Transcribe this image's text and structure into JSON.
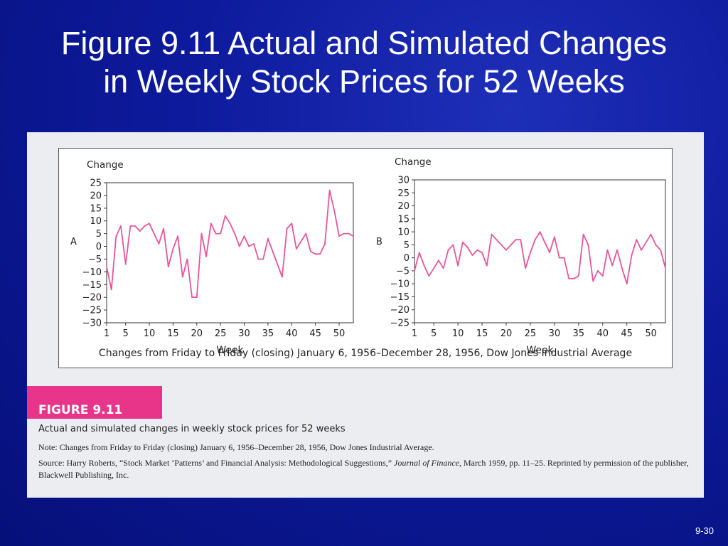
{
  "slide": {
    "title_line1": "Figure 9.11 Actual and Simulated Changes",
    "title_line2": "in Weekly Stock Prices for 52 Weeks",
    "page_number": "9-30"
  },
  "figure": {
    "label": "FIGURE 9.11",
    "caption": "Actual and simulated changes in weekly stock prices for 52 weeks",
    "note": "Note: Changes from Friday to Friday (closing) January 6, 1956–December 28, 1956, Dow Jones Industrial Average.",
    "source_prefix": "Source: Harry Roberts, “Stock Market ‘Patterns’ and Financial Analysis: Methodological Suggestions,” ",
    "source_journal": "Journal of Finance,",
    "source_suffix": " March 1959, pp. 11–25. Reprinted by permission of the publisher, Blackwell Publishing, Inc.",
    "chart_footer": "Changes from Friday to Friday (closing) January 6, 1956–December 28, 1956, Dow Jones Industrial Average"
  },
  "colors": {
    "line": "#e8559a",
    "accent": "#e8358a"
  },
  "chart_data": [
    {
      "type": "line",
      "panel_label": "A",
      "ylabel": "Change",
      "xlabel": "Week",
      "xlim": [
        1,
        53
      ],
      "ylim": [
        -30,
        25
      ],
      "xticks": [
        1,
        5,
        10,
        15,
        20,
        25,
        30,
        35,
        40,
        45,
        50
      ],
      "yticks": [
        25,
        20,
        15,
        10,
        5,
        0,
        -5,
        -10,
        -15,
        -20,
        -25,
        -30
      ],
      "ytick_labels": [
        "25",
        "20",
        "15",
        "10",
        "5",
        "0",
        "−5",
        "−10",
        "−15",
        "−20",
        "−25",
        "−30"
      ],
      "series": [
        {
          "x": [
            1,
            2,
            3,
            4,
            5,
            6,
            7,
            8,
            9,
            10,
            11,
            12,
            13,
            14,
            15,
            16,
            17,
            18,
            19,
            20,
            21,
            22,
            23,
            24,
            25,
            26,
            27,
            28,
            29,
            30,
            31,
            32,
            33,
            34,
            35,
            36,
            37,
            38,
            39,
            40,
            41,
            42,
            43,
            44,
            45,
            46,
            47,
            48,
            49,
            50,
            51,
            52,
            53
          ],
          "values": [
            -8,
            -17,
            4,
            8,
            -7,
            8,
            8,
            6,
            8,
            9,
            5,
            1,
            7,
            -8,
            -1,
            4,
            -12,
            -5,
            -20,
            -20,
            5,
            -4,
            9,
            5,
            5,
            12,
            9,
            5,
            0,
            4,
            0,
            1,
            -5,
            -5,
            3,
            -2,
            -7,
            -12,
            7,
            9,
            -1,
            2,
            5,
            -2,
            -3,
            -3,
            1,
            22,
            14,
            4,
            5,
            5,
            4
          ]
        }
      ]
    },
    {
      "type": "line",
      "panel_label": "B",
      "ylabel": "Change",
      "xlabel": "Week",
      "xlim": [
        1,
        53
      ],
      "ylim": [
        -25,
        30
      ],
      "xticks": [
        1,
        5,
        10,
        15,
        20,
        25,
        30,
        35,
        40,
        45,
        50
      ],
      "yticks": [
        30,
        25,
        20,
        15,
        10,
        5,
        0,
        -5,
        -10,
        -15,
        -20,
        -25
      ],
      "ytick_labels": [
        "30",
        "25",
        "20",
        "15",
        "10",
        "5",
        "0",
        "−5",
        "−10",
        "−15",
        "−20",
        "−25"
      ],
      "series": [
        {
          "x": [
            1,
            2,
            3,
            4,
            5,
            6,
            7,
            8,
            9,
            10,
            11,
            12,
            13,
            14,
            15,
            16,
            17,
            18,
            19,
            20,
            21,
            22,
            23,
            24,
            25,
            26,
            27,
            28,
            29,
            30,
            31,
            32,
            33,
            34,
            35,
            36,
            37,
            38,
            39,
            40,
            41,
            42,
            43,
            44,
            45,
            46,
            47,
            48,
            49,
            50,
            51,
            52,
            53
          ],
          "values": [
            -5,
            2,
            -3,
            -7,
            -4,
            -1,
            -4,
            3,
            5,
            -3,
            6,
            4,
            1,
            3,
            2,
            -3,
            9,
            7,
            5,
            3,
            5,
            7,
            7,
            -4,
            2,
            7,
            10,
            6,
            2,
            8,
            0,
            0,
            -8,
            -8,
            -7,
            9,
            5,
            -9,
            -5,
            -7,
            3,
            -3,
            3,
            -4,
            -10,
            1,
            7,
            3,
            6,
            9,
            5,
            3,
            -4
          ]
        }
      ]
    }
  ]
}
